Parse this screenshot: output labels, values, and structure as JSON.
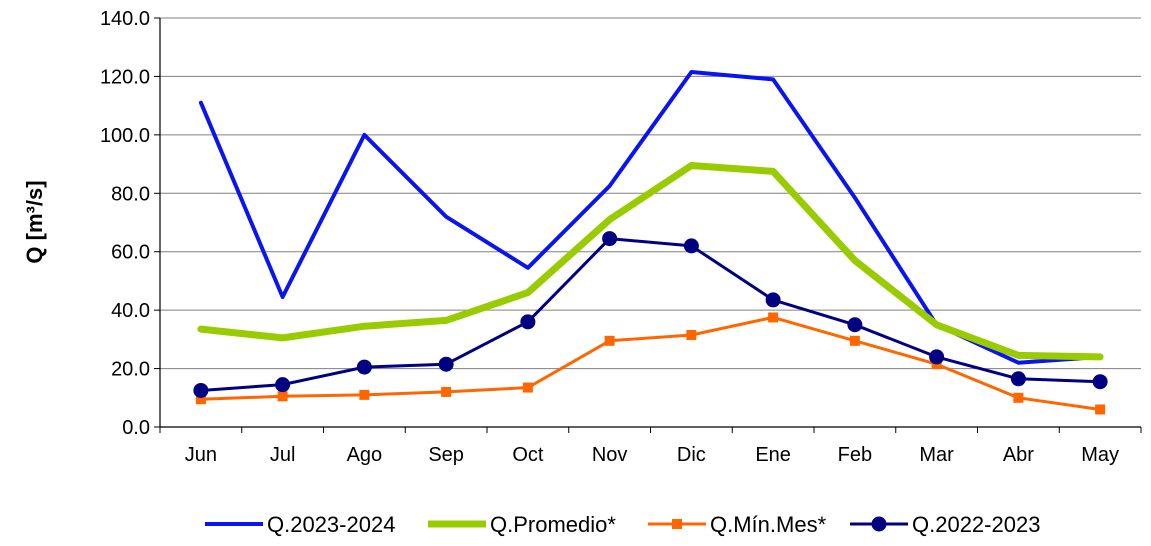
{
  "chart_data": {
    "type": "line",
    "title": "",
    "xlabel": "",
    "ylabel": "Q [m³/s]",
    "ylim": [
      0,
      140
    ],
    "yticks": [
      "0.0",
      "20.0",
      "40.0",
      "60.0",
      "80.0",
      "100.0",
      "120.0",
      "140.0"
    ],
    "grid": "horizontal",
    "legend_position": "bottom",
    "categories": [
      "Jun",
      "Jul",
      "Ago",
      "Sep",
      "Oct",
      "Nov",
      "Dic",
      "Ene",
      "Feb",
      "Mar",
      "Abr",
      "May"
    ],
    "series": [
      {
        "name": "Q.2023-2024",
        "color": "#0a14f0",
        "marker": "none",
        "values": [
          111.0,
          44.5,
          100.0,
          72.0,
          54.5,
          82.5,
          121.5,
          119.0,
          78.5,
          35.0,
          22.0,
          24.0
        ]
      },
      {
        "name": "Q.Promedio*",
        "color": "#99cc00",
        "marker": "none",
        "values": [
          33.5,
          30.5,
          34.5,
          36.5,
          46.0,
          71.0,
          89.5,
          87.5,
          57.0,
          35.0,
          24.5,
          24.0
        ]
      },
      {
        "name": "Q.Mín.Mes*",
        "color": "#ff6600",
        "marker": "square",
        "values": [
          9.5,
          10.5,
          11.0,
          12.0,
          13.5,
          29.5,
          31.5,
          37.5,
          29.5,
          21.5,
          10.0,
          6.0
        ]
      },
      {
        "name": "Q.2022-2023",
        "color": "#000080",
        "marker": "circle",
        "values": [
          12.5,
          14.5,
          20.5,
          21.5,
          36.0,
          64.5,
          62.0,
          43.5,
          35.0,
          24.0,
          16.5,
          15.5
        ]
      }
    ]
  }
}
